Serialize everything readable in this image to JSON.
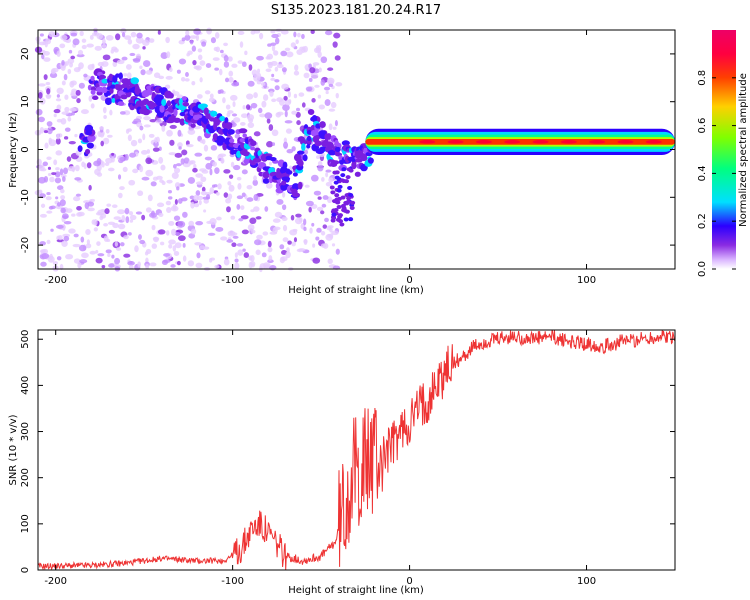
{
  "chart_data": [
    {
      "type": "heatmap",
      "title": "S135.2023.181.20.24.R17",
      "xlabel": "Height of straight line (km)",
      "ylabel": "Frequency (Hz)",
      "xlim": [
        -210,
        150
      ],
      "ylim": [
        -25,
        25
      ],
      "xticks": [
        -200,
        -100,
        0,
        100
      ],
      "yticks": [
        -20,
        -10,
        0,
        10,
        20
      ],
      "grid": false,
      "colorbar": {
        "label": "Normalized spectral amplitude",
        "range": [
          0,
          1
        ],
        "ticks": [
          "0.0",
          "0.2",
          "0.4",
          "0.6",
          "0.8"
        ]
      },
      "ridge": {
        "description_points": [
          {
            "x": -180,
            "y": 14
          },
          {
            "x": -150,
            "y": 11
          },
          {
            "x": -120,
            "y": 7
          },
          {
            "x": -95,
            "y": 1
          },
          {
            "x": -80,
            "y": -4
          },
          {
            "x": -65,
            "y": -8
          },
          {
            "x": -57,
            "y": 5
          },
          {
            "x": -45,
            "y": 0
          },
          {
            "x": -30,
            "y": -3
          },
          {
            "x": -20,
            "y": 0
          },
          {
            "x": 0,
            "y": 2
          },
          {
            "x": 50,
            "y": 1.5
          },
          {
            "x": 80,
            "y": 2.5
          },
          {
            "x": 100,
            "y": 1.5
          },
          {
            "x": 150,
            "y": 1.5
          }
        ]
      }
    },
    {
      "type": "line",
      "xlabel": "Height of straight line (km)",
      "ylabel": "SNR (10 * v/v)",
      "xlim": [
        -210,
        150
      ],
      "ylim": [
        0,
        520
      ],
      "xticks": [
        -200,
        -100,
        0,
        100
      ],
      "yticks": [
        0,
        100,
        200,
        300,
        400,
        500
      ],
      "grid": false,
      "color": "#ee3333",
      "series": [
        {
          "x": [
            -210,
            -180,
            -160,
            -140,
            -120,
            -105,
            -95,
            -90,
            -85,
            -80,
            -75,
            -70,
            -60,
            -50,
            -42,
            -38,
            -33,
            -30,
            -25,
            -20,
            -15,
            -10,
            -5,
            0,
            5,
            10,
            15,
            20,
            25,
            30,
            35,
            40,
            50,
            60,
            70,
            80,
            90,
            100,
            110,
            120,
            130,
            140,
            150
          ],
          "y": [
            8,
            10,
            15,
            25,
            20,
            20,
            45,
            85,
            100,
            80,
            55,
            30,
            20,
            30,
            60,
            120,
            200,
            210,
            230,
            250,
            250,
            270,
            300,
            320,
            350,
            370,
            400,
            430,
            450,
            460,
            480,
            490,
            500,
            505,
            500,
            505,
            495,
            490,
            485,
            495,
            500,
            505,
            505
          ]
        }
      ]
    }
  ]
}
